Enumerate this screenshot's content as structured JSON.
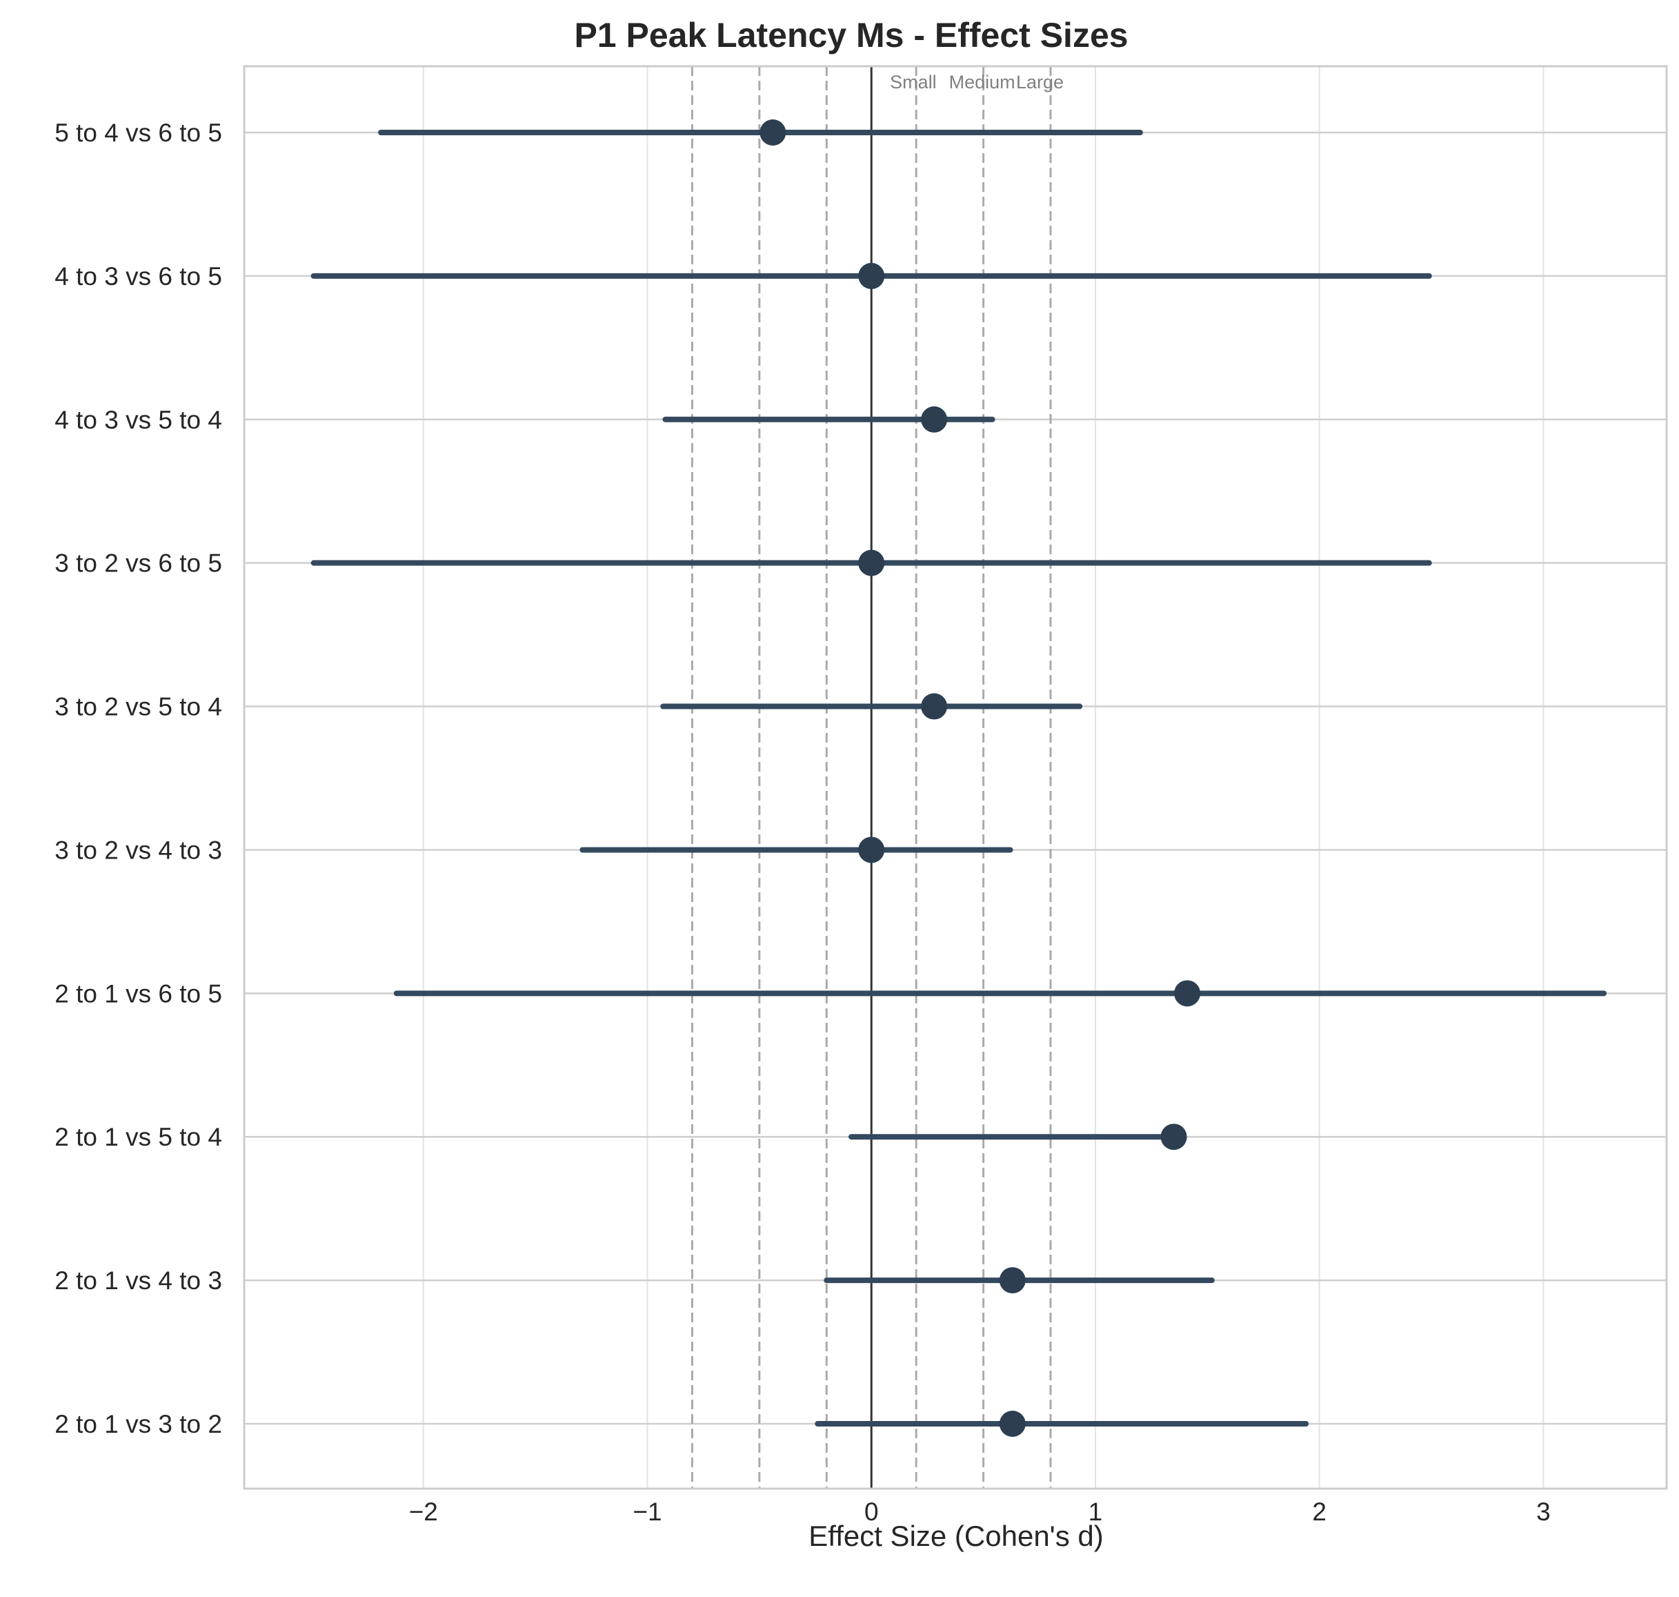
{
  "chart_data": {
    "type": "forest",
    "title": "P1 Peak Latency Ms - Effect Sizes",
    "xlabel": "Effect Size (Cohen's d)",
    "ylabel": "",
    "xlim": [
      -2.8,
      3.55
    ],
    "xticks": [
      -2,
      -1,
      0,
      1,
      2,
      3
    ],
    "xtick_labels": [
      "−2",
      "−1",
      "0",
      "1",
      "2",
      "3"
    ],
    "grid": true,
    "zero_line": 0,
    "threshold_lines": [
      -0.8,
      -0.5,
      -0.2,
      0.2,
      0.5,
      0.8
    ],
    "threshold_labels": [
      {
        "text": "Small",
        "value": 0.2
      },
      {
        "text": "Medium",
        "value": 0.5
      },
      {
        "text": "Large",
        "value": 0.8
      }
    ],
    "comparisons": [
      {
        "label": "5 to 4 vs 6 to 5",
        "d": -0.44,
        "ci": [
          -2.19,
          1.2
        ]
      },
      {
        "label": "4 to 3 vs 6 to 5",
        "d": 0.0,
        "ci": [
          -2.49,
          2.49
        ]
      },
      {
        "label": "4 to 3 vs 5 to 4",
        "d": 0.28,
        "ci": [
          -0.92,
          0.54
        ]
      },
      {
        "label": "3 to 2 vs 6 to 5",
        "d": 0.0,
        "ci": [
          -2.49,
          2.49
        ]
      },
      {
        "label": "3 to 2 vs 5 to 4",
        "d": 0.28,
        "ci": [
          -0.93,
          0.93
        ]
      },
      {
        "label": "3 to 2 vs 4 to 3",
        "d": 0.0,
        "ci": [
          -1.29,
          0.62
        ]
      },
      {
        "label": "2 to 1 vs 6 to 5",
        "d": 1.41,
        "ci": [
          -2.12,
          3.27
        ]
      },
      {
        "label": "2 to 1 vs 5 to 4",
        "d": 1.35,
        "ci": [
          -0.09,
          1.35
        ]
      },
      {
        "label": "2 to 1 vs 4 to 3",
        "d": 0.63,
        "ci": [
          -0.2,
          1.52
        ]
      },
      {
        "label": "2 to 1 vs 3 to 2",
        "d": 0.63,
        "ci": [
          -0.24,
          1.94
        ]
      }
    ],
    "colors": {
      "marker": "#2c3e50",
      "ci_line": "#34495e",
      "zero_line": "#333333",
      "threshold": "#aaaaaa",
      "grid": "#e3e3e3",
      "frame": "#cccccc"
    }
  }
}
